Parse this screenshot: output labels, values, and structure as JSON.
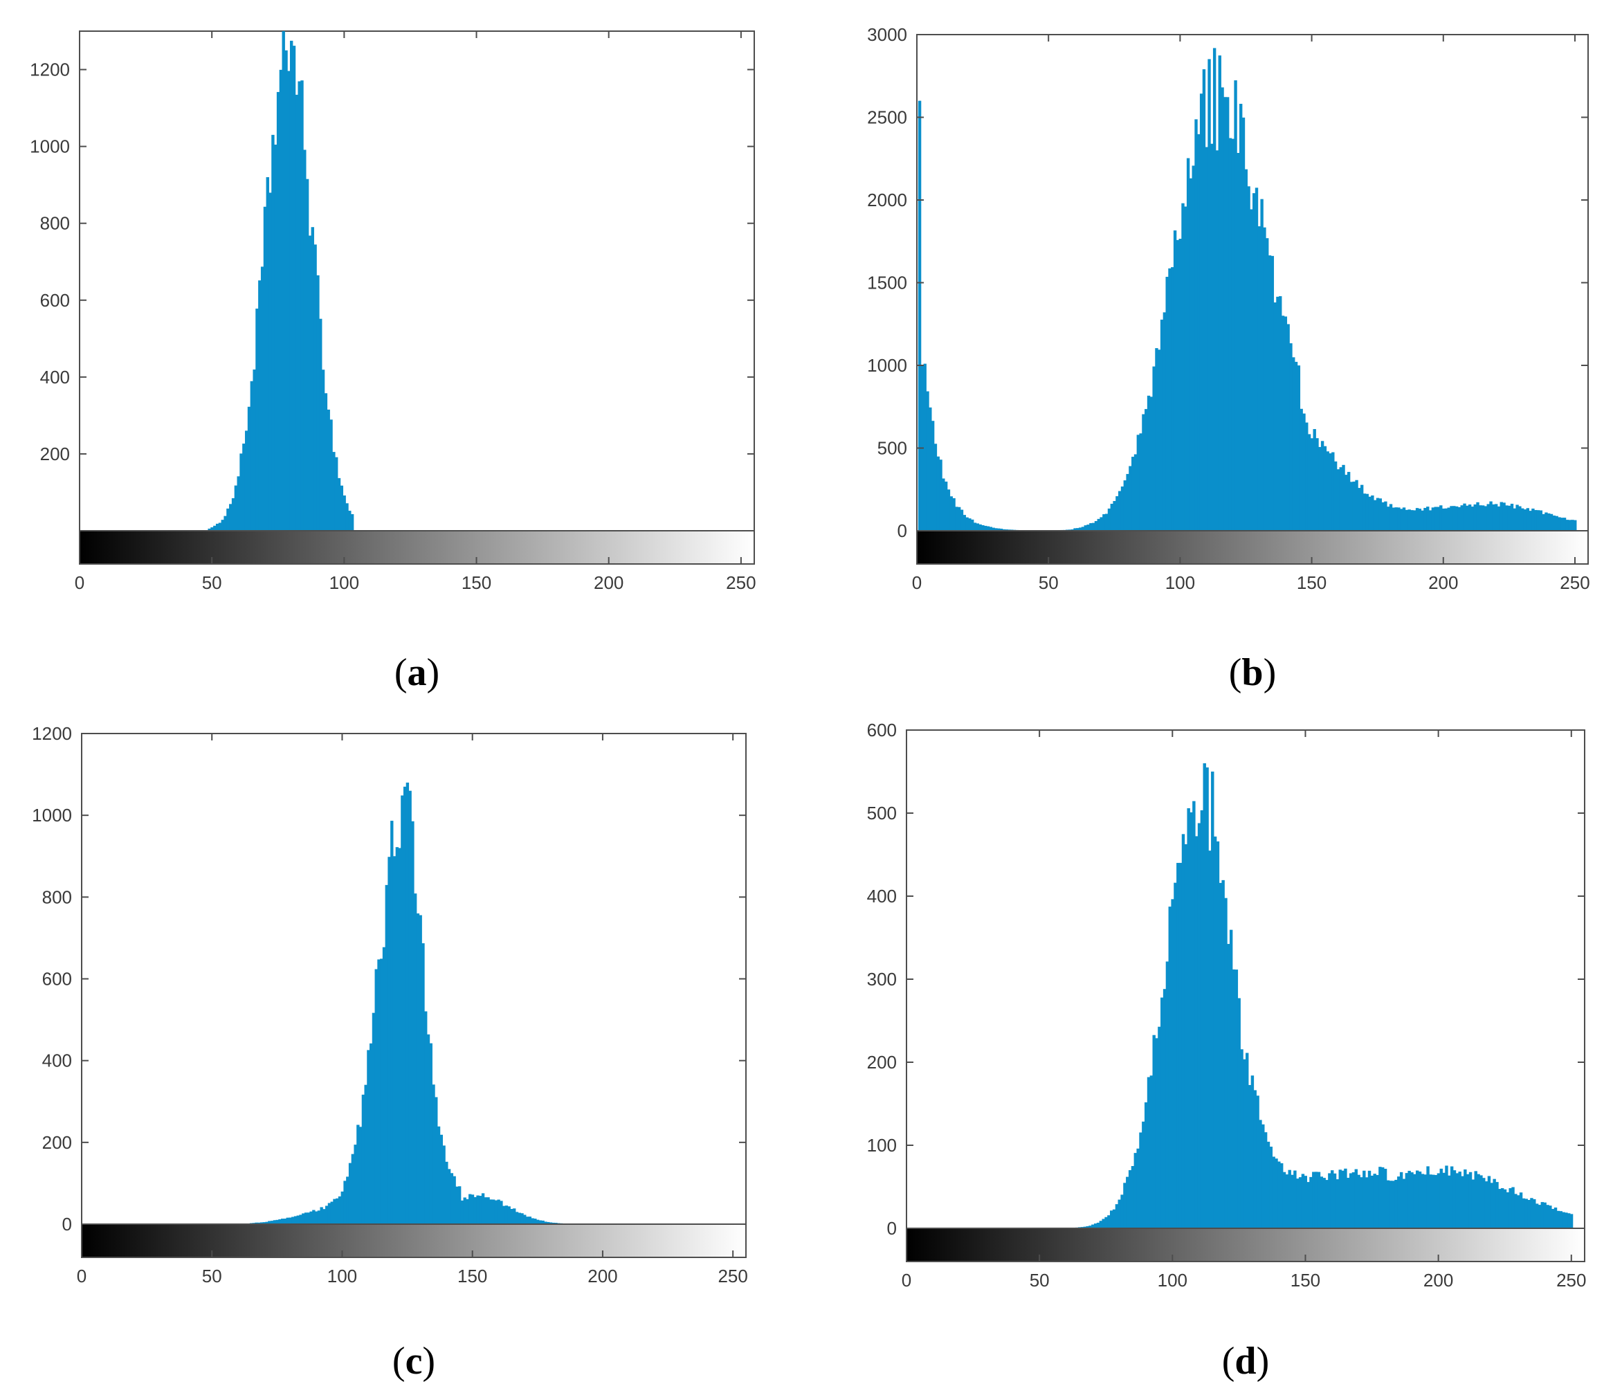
{
  "colors": {
    "bar": "#0A8FCB",
    "axis": "#4d4d4d",
    "tick_text": "#3a3a3a"
  },
  "chart_data": [
    {
      "id": "a",
      "type": "bar",
      "label": "a",
      "xlim": [
        0,
        255
      ],
      "xticks": [
        0,
        50,
        100,
        150,
        200,
        250
      ],
      "ylim": [
        0,
        1300
      ],
      "yticks": [
        200,
        400,
        600,
        800,
        1000,
        1200
      ],
      "grayscale_colorbar": true,
      "grid": false,
      "components": [
        {
          "type": "gauss",
          "center": 79,
          "sigma": 9.2,
          "amp": 1240,
          "lo": 49,
          "hi": 103
        }
      ],
      "peaks": [
        {
          "x": 78,
          "y": 1250
        },
        {
          "x": 80,
          "y": 1275
        },
        {
          "x": 81,
          "y": 1262
        }
      ]
    },
    {
      "id": "b",
      "type": "bar",
      "label": "b",
      "xlim": [
        0,
        255
      ],
      "xticks": [
        0,
        50,
        100,
        150,
        200,
        250
      ],
      "ylim": [
        0,
        3000
      ],
      "yticks": [
        0,
        500,
        1000,
        1500,
        2000,
        2500,
        3000
      ],
      "grayscale_colorbar": true,
      "grid": false,
      "components": [
        {
          "type": "exp",
          "start": 3,
          "amp": 1000,
          "tau": 6.5,
          "lo": 3,
          "hi": 60
        },
        {
          "type": "gauss",
          "center": 112,
          "sigma": 16,
          "amp": 2150,
          "lo": 50,
          "hi": 145
        },
        {
          "type": "gauss",
          "center": 132,
          "sigma": 22,
          "amp": 780,
          "lo": 60,
          "hi": 200
        },
        {
          "type": "gauss",
          "center": 220,
          "sigma": 22,
          "amp": 125,
          "lo": 150,
          "hi": 250
        },
        {
          "type": "gauss",
          "center": 180,
          "sigma": 40,
          "amp": 60,
          "lo": 140,
          "hi": 250
        }
      ],
      "peaks": [
        {
          "x": 1,
          "y": 2600
        },
        {
          "x": 2,
          "y": 1000
        },
        {
          "x": 3,
          "y": 1010
        },
        {
          "x": 110,
          "y": 2320
        },
        {
          "x": 112,
          "y": 2340
        },
        {
          "x": 114,
          "y": 2300
        }
      ]
    },
    {
      "id": "c",
      "type": "bar",
      "label": "c",
      "xlim": [
        0,
        255
      ],
      "xticks": [
        0,
        50,
        100,
        150,
        200,
        250
      ],
      "ylim": [
        0,
        1200
      ],
      "yticks": [
        0,
        200,
        400,
        600,
        800,
        1000,
        1200
      ],
      "grayscale_colorbar": true,
      "grid": false,
      "components": [
        {
          "type": "gauss",
          "center": 122,
          "sigma": 9,
          "amp": 900,
          "lo": 60,
          "hi": 145
        },
        {
          "type": "gauss",
          "center": 126,
          "sigma": 4,
          "amp": 150,
          "lo": 110,
          "hi": 140
        },
        {
          "type": "gauss",
          "center": 152,
          "sigma": 12,
          "amp": 70,
          "lo": 130,
          "hi": 185
        },
        {
          "type": "gauss",
          "center": 100,
          "sigma": 15,
          "amp": 40,
          "lo": 65,
          "hi": 120
        }
      ],
      "peaks": [
        {
          "x": 120,
          "y": 900
        },
        {
          "x": 122,
          "y": 920
        },
        {
          "x": 124,
          "y": 1070
        },
        {
          "x": 125,
          "y": 1080
        },
        {
          "x": 126,
          "y": 1060
        }
      ]
    },
    {
      "id": "d",
      "type": "bar",
      "label": "d",
      "xlim": [
        0,
        255
      ],
      "xticks": [
        0,
        50,
        100,
        150,
        200,
        250
      ],
      "ylim": [
        0,
        600
      ],
      "yticks": [
        0,
        100,
        200,
        300,
        400,
        500,
        600
      ],
      "grayscale_colorbar": true,
      "grid": false,
      "components": [
        {
          "type": "gauss",
          "center": 110,
          "sigma": 13,
          "amp": 510,
          "lo": 60,
          "hi": 160
        },
        {
          "type": "gauss",
          "center": 200,
          "sigma": 30,
          "amp": 70,
          "lo": 140,
          "hi": 250
        },
        {
          "type": "gauss",
          "center": 150,
          "sigma": 20,
          "amp": 40,
          "lo": 130,
          "hi": 180
        }
      ],
      "peaks": [
        {
          "x": 112,
          "y": 560
        },
        {
          "x": 113,
          "y": 555
        },
        {
          "x": 115,
          "y": 550
        }
      ]
    }
  ]
}
